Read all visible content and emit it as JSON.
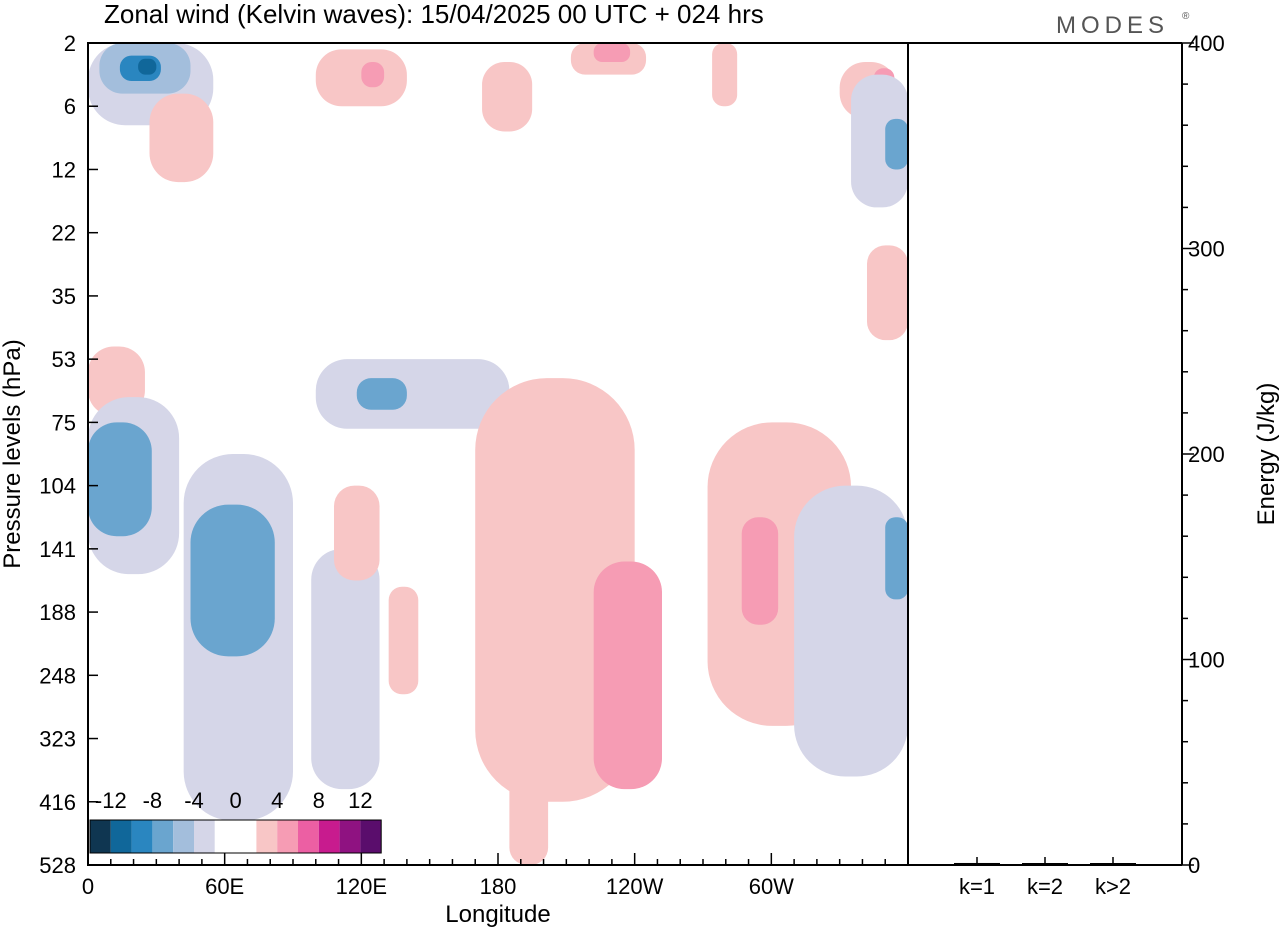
{
  "title": "Zonal wind (Kelvin waves):  15/04/2025  00 UTC  + 024 hrs",
  "brand": "MODES",
  "brand_mark": "®",
  "chart_data": [
    {
      "type": "heatmap",
      "title": "Zonal wind (Kelvin waves):  15/04/2025  00 UTC  + 024 hrs",
      "xlabel": "Longitude",
      "ylabel": "Pressure levels (hPa)",
      "x_ticks": [
        "0",
        "60E",
        "120E",
        "180",
        "120W",
        "60W"
      ],
      "y_ticks": [
        "2",
        "6",
        "12",
        "22",
        "35",
        "53",
        "75",
        "104",
        "141",
        "188",
        "248",
        "323",
        "416",
        "528"
      ],
      "colorbar": {
        "labels": [
          "-12",
          "-8",
          "-4",
          "0",
          "4",
          "8",
          "12"
        ],
        "colors": [
          "#0f3651",
          "#10679a",
          "#2a86c0",
          "#6aa5cf",
          "#a3bedc",
          "#d5d6e8",
          "#ffffff",
          "#ffffff",
          "#f8c6c6",
          "#f69cb4",
          "#ec5fa3",
          "#c81b8e",
          "#8f1281",
          "#5a0d6c"
        ]
      },
      "regions": [
        {
          "sign": "neg",
          "level": 1,
          "lon": [
            0,
            55
          ],
          "lev": [
            0,
            1.3
          ]
        },
        {
          "sign": "neg",
          "level": 2,
          "lon": [
            5,
            45
          ],
          "lev": [
            0,
            0.8
          ]
        },
        {
          "sign": "neg",
          "level": 4,
          "lon": [
            14,
            32
          ],
          "lev": [
            0.2,
            0.6
          ]
        },
        {
          "sign": "neg",
          "level": 5,
          "lon": [
            22,
            30
          ],
          "lev": [
            0.25,
            0.5
          ]
        },
        {
          "sign": "pos",
          "level": 1,
          "lon": [
            27,
            55
          ],
          "lev": [
            0.8,
            2.2
          ]
        },
        {
          "sign": "pos",
          "level": 1,
          "lon": [
            100,
            140
          ],
          "lev": [
            0.1,
            1.0
          ]
        },
        {
          "sign": "pos",
          "level": 2,
          "lon": [
            120,
            130
          ],
          "lev": [
            0.3,
            0.7
          ]
        },
        {
          "sign": "pos",
          "level": 1,
          "lon": [
            173,
            195
          ],
          "lev": [
            0.3,
            1.4
          ]
        },
        {
          "sign": "pos",
          "level": 1,
          "lon": [
            212,
            245
          ],
          "lev": [
            0,
            0.5
          ]
        },
        {
          "sign": "pos",
          "level": 2,
          "lon": [
            222,
            238
          ],
          "lev": [
            0,
            0.3
          ]
        },
        {
          "sign": "pos",
          "level": 1,
          "lon": [
            274,
            285
          ],
          "lev": [
            0,
            1.0
          ]
        },
        {
          "sign": "pos",
          "level": 1,
          "lon": [
            330,
            355
          ],
          "lev": [
            0.3,
            1.2
          ]
        },
        {
          "sign": "pos",
          "level": 2,
          "lon": [
            345,
            354
          ],
          "lev": [
            0.4,
            0.8
          ]
        },
        {
          "sign": "neg",
          "level": 1,
          "lon": [
            335,
            360
          ],
          "lev": [
            0.5,
            2.6
          ]
        },
        {
          "sign": "neg",
          "level": 3,
          "lon": [
            350,
            360
          ],
          "lev": [
            1.2,
            2.0
          ]
        },
        {
          "sign": "pos",
          "level": 1,
          "lon": [
            342,
            360
          ],
          "lev": [
            3.2,
            4.7
          ]
        },
        {
          "sign": "pos",
          "level": 1,
          "lon": [
            0,
            25
          ],
          "lev": [
            4.8,
            5.9
          ]
        },
        {
          "sign": "neg",
          "level": 1,
          "lon": [
            100,
            185
          ],
          "lev": [
            5.0,
            6.1
          ]
        },
        {
          "sign": "neg",
          "level": 3,
          "lon": [
            118,
            140
          ],
          "lev": [
            5.3,
            5.8
          ]
        },
        {
          "sign": "neg",
          "level": 1,
          "lon": [
            0,
            40
          ],
          "lev": [
            5.6,
            8.4
          ]
        },
        {
          "sign": "neg",
          "level": 3,
          "lon": [
            0,
            28
          ],
          "lev": [
            6.0,
            7.8
          ]
        },
        {
          "sign": "neg",
          "level": 1,
          "lon": [
            42,
            90
          ],
          "lev": [
            6.5,
            12.3
          ]
        },
        {
          "sign": "neg",
          "level": 3,
          "lon": [
            45,
            82
          ],
          "lev": [
            7.3,
            9.7
          ]
        },
        {
          "sign": "neg",
          "level": 1,
          "lon": [
            98,
            128
          ],
          "lev": [
            8.0,
            11.8
          ]
        },
        {
          "sign": "pos",
          "level": 1,
          "lon": [
            108,
            128
          ],
          "lev": [
            7.0,
            8.5
          ]
        },
        {
          "sign": "pos",
          "level": 1,
          "lon": [
            132,
            145
          ],
          "lev": [
            8.6,
            10.3
          ]
        },
        {
          "sign": "pos",
          "level": 1,
          "lon": [
            170,
            240
          ],
          "lev": [
            5.3,
            12.0
          ]
        },
        {
          "sign": "pos",
          "level": 2,
          "lon": [
            222,
            252
          ],
          "lev": [
            8.2,
            11.8
          ]
        },
        {
          "sign": "pos",
          "level": 1,
          "lon": [
            185,
            202
          ],
          "lev": [
            10.8,
            13.0
          ]
        },
        {
          "sign": "pos",
          "level": 1,
          "lon": [
            272,
            335
          ],
          "lev": [
            6.0,
            10.8
          ]
        },
        {
          "sign": "pos",
          "level": 2,
          "lon": [
            287,
            303
          ],
          "lev": [
            7.5,
            9.2
          ]
        },
        {
          "sign": "neg",
          "level": 1,
          "lon": [
            310,
            360
          ],
          "lev": [
            7.0,
            11.6
          ]
        },
        {
          "sign": "neg",
          "level": 3,
          "lon": [
            350,
            360
          ],
          "lev": [
            7.5,
            8.8
          ]
        }
      ]
    },
    {
      "type": "bar",
      "categories": [
        "k=1",
        "k=2",
        "k>2"
      ],
      "values": [
        0.5,
        0.1,
        0.3
      ],
      "ylabel": "Energy (J/kg)",
      "ylim": [
        0,
        400
      ],
      "y_ticks": [
        "0",
        "100",
        "200",
        "300",
        "400"
      ]
    }
  ]
}
